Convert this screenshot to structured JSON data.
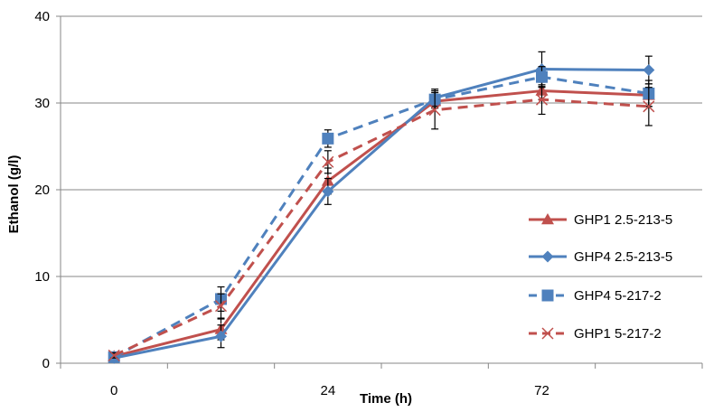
{
  "chart_data": {
    "type": "line",
    "title": "",
    "xlabel": "Time (h)",
    "ylabel": "Ethanol (g/l)",
    "ylim": [
      0,
      40
    ],
    "yticks": [
      0,
      10,
      20,
      30,
      40
    ],
    "x_positions": [
      0,
      12,
      24,
      48,
      72,
      96
    ],
    "x_tick_labels": [
      {
        "x": 0,
        "label": "0"
      },
      {
        "x": 24,
        "label": "24"
      },
      {
        "x": 72,
        "label": "72"
      }
    ],
    "grid": "horizontal",
    "legend_position": "right",
    "series": [
      {
        "name": "GHP1 2.5-213-5",
        "color": "#C0504D",
        "dash": false,
        "marker": "triangle",
        "values": [
          0.8,
          3.9,
          21.0,
          30.2,
          31.4,
          30.9
        ],
        "errors": [
          0.3,
          1.2,
          1.5,
          0.8,
          1.0,
          1.3
        ]
      },
      {
        "name": "GHP4 2.5-213-5",
        "color": "#4F81BD",
        "dash": false,
        "marker": "diamond",
        "values": [
          0.6,
          3.1,
          19.8,
          30.6,
          33.9,
          33.8
        ],
        "errors": [
          0.3,
          1.3,
          1.5,
          1.0,
          2.0,
          1.6
        ]
      },
      {
        "name": "GHP4 5-217-2",
        "color": "#4F81BD",
        "dash": true,
        "marker": "square",
        "values": [
          0.7,
          7.4,
          25.9,
          30.4,
          33.0,
          31.1
        ],
        "errors": [
          0.3,
          1.4,
          1.0,
          0.8,
          1.2,
          1.5
        ]
      },
      {
        "name": "GHP1 5-217-2",
        "color": "#C0504D",
        "dash": true,
        "marker": "x",
        "values": [
          0.9,
          6.6,
          23.2,
          29.2,
          30.4,
          29.6
        ],
        "errors": [
          0.3,
          1.4,
          1.3,
          2.2,
          1.7,
          2.2
        ]
      }
    ]
  }
}
